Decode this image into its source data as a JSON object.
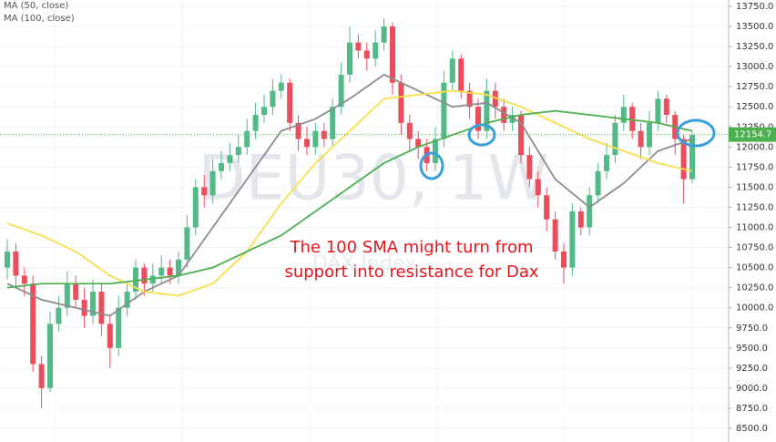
{
  "chart_data": {
    "type": "candlestick",
    "watermark": "DEU30, 1W",
    "watermark_sub": "DAX Index",
    "annotation": [
      "The 100 SMA might turn from",
      "support into resistance for Dax"
    ],
    "categories": [
      null,
      null,
      null,
      null,
      null,
      null,
      null,
      null,
      null,
      null,
      null,
      null,
      null,
      null,
      null,
      null,
      null,
      null,
      null,
      null,
      null,
      null,
      null,
      null,
      null,
      null,
      null,
      null,
      null,
      null,
      null,
      null,
      null,
      null,
      null,
      null,
      null,
      null,
      null,
      null,
      null,
      null,
      null,
      null,
      null,
      null,
      null,
      null,
      null,
      null,
      null,
      null,
      null,
      null,
      null,
      null,
      null,
      null,
      null,
      null,
      null,
      null,
      null,
      null,
      null,
      null,
      null,
      null,
      null,
      null,
      null,
      null,
      null,
      null,
      null,
      null,
      null,
      null,
      null,
      null,
      null
    ],
    "open": [
      10500,
      10700,
      10400,
      10300,
      9300,
      9000,
      9800,
      10000,
      10300,
      10100,
      9900,
      10200,
      9800,
      9500,
      10000,
      10200,
      10500,
      10300,
      10400,
      10500,
      10400,
      10600,
      11000,
      11500,
      11400,
      11700,
      11800,
      11900,
      12000,
      12200,
      12400,
      12500,
      12700,
      12800,
      12300,
      12100,
      12000,
      12200,
      12100,
      12500,
      12900,
      13300,
      13200,
      13100,
      13300,
      13500,
      12800,
      12300,
      12100,
      12000,
      11800,
      12100,
      12800,
      13100,
      12700,
      12500,
      12200,
      12700,
      12500,
      12300,
      12400,
      11900,
      11600,
      11400,
      11100,
      10700,
      10500,
      11200,
      11000,
      11400,
      11700,
      11900,
      12300,
      12500,
      12200,
      12000,
      12300,
      12600,
      12400,
      12100,
      11600
    ],
    "high": [
      10850,
      10800,
      10500,
      10400,
      9400,
      9950,
      10150,
      10450,
      10400,
      10250,
      10350,
      10300,
      9900,
      10150,
      10300,
      10600,
      10550,
      10550,
      10650,
      10600,
      10700,
      11150,
      11600,
      11650,
      11850,
      11950,
      12050,
      12150,
      12350,
      12550,
      12650,
      12850,
      12900,
      12850,
      12400,
      12250,
      12300,
      12300,
      12600,
      13050,
      13500,
      13400,
      13300,
      13450,
      13600,
      13550,
      12900,
      12400,
      12200,
      12100,
      12250,
      12950,
      13200,
      13150,
      12800,
      12600,
      12850,
      12800,
      12600,
      12500,
      12450,
      12000,
      11700,
      11500,
      11200,
      10800,
      11300,
      11250,
      11500,
      11800,
      12050,
      12400,
      12650,
      12550,
      12300,
      12450,
      12700,
      12650,
      12450,
      12150,
      12200
    ],
    "low": [
      10350,
      10250,
      10150,
      9200,
      8750,
      8950,
      9700,
      9900,
      10000,
      9750,
      9800,
      9650,
      9250,
      9400,
      9900,
      10100,
      10150,
      10200,
      10300,
      10300,
      10300,
      10500,
      10900,
      11250,
      11300,
      11600,
      11700,
      11800,
      11900,
      12100,
      12300,
      12400,
      12600,
      12200,
      11950,
      11900,
      11900,
      12000,
      12000,
      12400,
      12800,
      13100,
      12950,
      13000,
      13200,
      12650,
      12150,
      11950,
      11850,
      11700,
      11700,
      12000,
      12700,
      12600,
      12350,
      12100,
      12100,
      12350,
      12200,
      12200,
      11800,
      11500,
      11250,
      10950,
      10600,
      10300,
      10400,
      10900,
      10900,
      11300,
      11600,
      11800,
      12200,
      12100,
      11850,
      11900,
      12200,
      12300,
      11900,
      11300,
      11550
    ],
    "close": [
      10700,
      10400,
      10300,
      9300,
      9000,
      9800,
      10000,
      10300,
      10100,
      9900,
      10200,
      9800,
      9500,
      10000,
      10200,
      10500,
      10300,
      10400,
      10500,
      10400,
      10600,
      11000,
      11500,
      11400,
      11700,
      11800,
      11900,
      12000,
      12200,
      12400,
      12500,
      12700,
      12800,
      12300,
      12100,
      12000,
      12200,
      12100,
      12500,
      12900,
      13300,
      13200,
      13100,
      13300,
      13500,
      12800,
      12300,
      12100,
      12000,
      11800,
      12100,
      12800,
      13100,
      12700,
      12500,
      12200,
      12700,
      12500,
      12300,
      12400,
      11900,
      11600,
      11400,
      11100,
      10700,
      10500,
      11200,
      11000,
      11400,
      11700,
      11900,
      12300,
      12500,
      12200,
      12000,
      12300,
      12600,
      12400,
      12100,
      11600,
      12150
    ],
    "up_color": "#53b987",
    "down_color": "#eb4d5c",
    "series": [
      {
        "color": "#8c8c8c",
        "x": [
          0,
          4,
          8,
          12,
          16,
          20,
          24,
          28,
          32,
          36,
          40,
          44,
          48,
          52,
          56,
          60,
          64,
          68,
          72,
          76,
          80
        ],
        "values": [
          10300,
          10100,
          10000,
          9900,
          10200,
          10400,
          11000,
          11600,
          12200,
          12350,
          12600,
          12900,
          12700,
          12500,
          12550,
          12300,
          11600,
          11250,
          11550,
          11950,
          12100
        ]
      },
      {
        "name": "MA (50, close)",
        "color": "#f5e04a",
        "x": [
          0,
          4,
          8,
          12,
          16,
          20,
          24,
          28,
          32,
          36,
          40,
          44,
          48,
          52,
          56,
          60,
          64,
          68,
          72,
          76,
          80
        ],
        "values": [
          11050,
          10900,
          10700,
          10400,
          10200,
          10150,
          10300,
          10700,
          11300,
          11800,
          12200,
          12600,
          12650,
          12700,
          12650,
          12500,
          12300,
          12100,
          11950,
          11800,
          11700
        ]
      },
      {
        "name": "MA (100, close)",
        "color": "#4caf50",
        "x": [
          0,
          4,
          8,
          12,
          16,
          20,
          24,
          28,
          32,
          36,
          40,
          44,
          48,
          52,
          56,
          60,
          64,
          68,
          72,
          76,
          80
        ],
        "values": [
          10250,
          10300,
          10300,
          10300,
          10350,
          10400,
          10500,
          10700,
          10900,
          11200,
          11500,
          11800,
          12000,
          12150,
          12300,
          12400,
          12450,
          12400,
          12350,
          12300,
          12200
        ]
      }
    ],
    "last_price": 12154.7,
    "last_price_color": "#4caf50",
    "ylim": [
      8330,
      13829
    ],
    "yticks": [
      {
        "value": 8500,
        "label": "8500.0"
      },
      {
        "value": 8750,
        "label": "8750.0"
      },
      {
        "value": 9000,
        "label": "9000.0"
      },
      {
        "value": 9250,
        "label": "9250.0"
      },
      {
        "value": 9500,
        "label": "9500.0"
      },
      {
        "value": 9750,
        "label": "9750.0"
      },
      {
        "value": 10000,
        "label": "10000.0"
      },
      {
        "value": 10250,
        "label": "10250.0"
      },
      {
        "value": 10500,
        "label": "10500.0"
      },
      {
        "value": 10750,
        "label": "10750.0"
      },
      {
        "value": 11000,
        "label": "11000.0"
      },
      {
        "value": 11250,
        "label": "11250.0"
      },
      {
        "value": 11500,
        "label": "11500.0"
      },
      {
        "value": 11750,
        "label": "11750.0"
      },
      {
        "value": 12000,
        "label": "12000.0"
      },
      {
        "value": 12250,
        "label": "12250.0"
      },
      {
        "value": 12500,
        "label": "12500.0"
      },
      {
        "value": 12750,
        "label": "12750.0"
      },
      {
        "value": 13000,
        "label": "13000.0"
      },
      {
        "value": 13250,
        "label": "13250.0"
      },
      {
        "value": 13500,
        "label": "13500.0"
      },
      {
        "value": 13750,
        "label": "13750.0"
      }
    ],
    "grid": true
  }
}
